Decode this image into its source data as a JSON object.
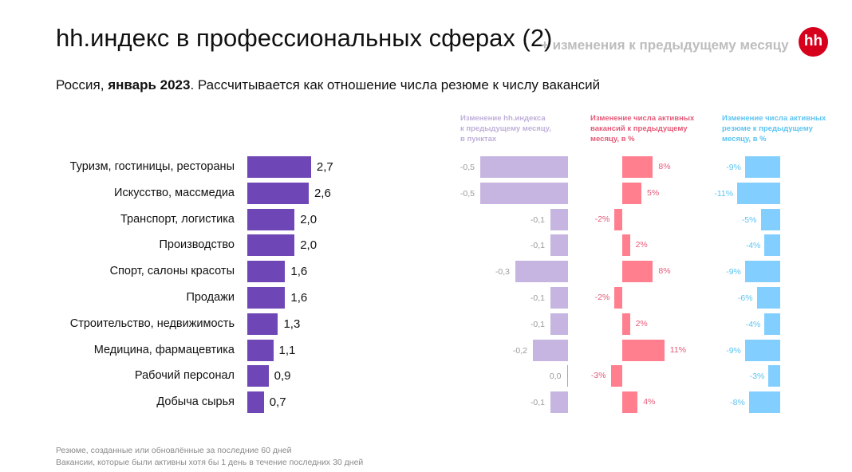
{
  "header": {
    "title": "hh.индекс в профессиональных сферах (2)",
    "title_extra": "+ изменения к предыдущему месяцу",
    "logo_text": "hh",
    "subtitle_prefix": "Россия, ",
    "subtitle_bold": "январь 2023",
    "subtitle_rest": ". Рассчитывается как отношение числа резюме к числу вакансий"
  },
  "colors": {
    "index": "#6f46b5",
    "index_change": "#c5b5e0",
    "vacancies": "#ff7f8e",
    "resumes": "#82cfff",
    "index_change_text": "#c0b0da",
    "vacancies_text": "#e55a78",
    "resumes_text": "#5cc4f2",
    "logo": "#d6001c"
  },
  "chart_data": {
    "type": "bar",
    "orientation": "horizontal",
    "categories": [
      "Туризм, гостиницы, рестораны",
      "Искусство, массмедиа",
      "Транспорт, логистика",
      "Производство",
      "Спорт, салоны красоты",
      "Продажи",
      "Строительство, недвижимость",
      "Медицина, фармацевтика",
      "Рабочий персонал",
      "Добыча сырья"
    ],
    "series": [
      {
        "key": "index",
        "values": [
          2.7,
          2.6,
          2.0,
          2.0,
          1.6,
          1.6,
          1.3,
          1.1,
          0.9,
          0.7
        ],
        "labels": [
          "2,7",
          "2,6",
          "2,0",
          "2,0",
          "1,6",
          "1,6",
          "1,3",
          "1,1",
          "0,9",
          "0,7"
        ]
      },
      {
        "key": "index_change",
        "name": "Изменение hh.индекса к предыдущему месяцу, в пунктах",
        "values": [
          -0.5,
          -0.5,
          -0.1,
          -0.1,
          -0.3,
          -0.1,
          -0.1,
          -0.2,
          0.0,
          -0.1
        ],
        "labels": [
          "-0,5",
          "-0,5",
          "-0,1",
          "-0,1",
          "-0,3",
          "-0,1",
          "-0,1",
          "-0,2",
          "0,0",
          "-0,1"
        ]
      },
      {
        "key": "vacancies",
        "name": "Изменение числа активных вакансий к предыдущему месяцу, в %",
        "values": [
          8,
          5,
          -2,
          2,
          8,
          -2,
          2,
          11,
          -3,
          4
        ],
        "labels": [
          "8%",
          "5%",
          "-2%",
          "2%",
          "8%",
          "-2%",
          "2%",
          "11%",
          "-3%",
          "4%"
        ]
      },
      {
        "key": "resumes",
        "name": "Изменение числа активных резюме к предыдущему месяцу, в %",
        "values": [
          -9,
          -11,
          -5,
          -4,
          -9,
          -6,
          -4,
          -9,
          -3,
          -8
        ],
        "labels": [
          "-9%",
          "-11%",
          "-5%",
          "-4%",
          "-9%",
          "-6%",
          "-4%",
          "-9%",
          "-3%",
          "-8%"
        ]
      }
    ],
    "column_headers": [
      [
        "Изменение hh.индекса",
        "к предыдущему месяцу,",
        "в пунктах"
      ],
      [
        "Изменение числа активных",
        "вакансий к предыдущему",
        "месяцу, в %"
      ],
      [
        "Изменение числа активных",
        "резюме к предыдущему",
        "месяцу, в %"
      ]
    ],
    "grid": false,
    "legend": "none"
  },
  "footnotes": [
    "Резюме, созданные или обновлённые за последние 60 дней",
    "Вакансии, которые были активны хотя бы 1 день в течение последних 30 дней"
  ]
}
